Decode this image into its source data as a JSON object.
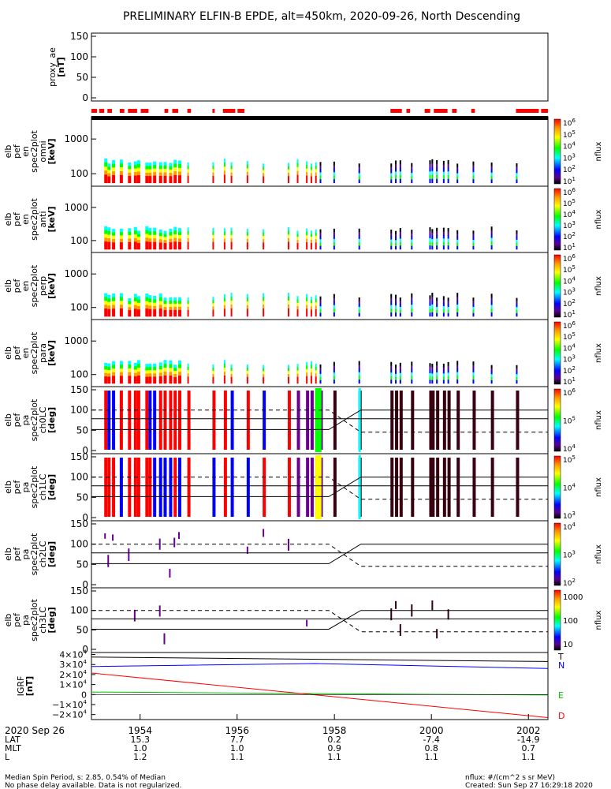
{
  "title": "PRELIMINARY ELFIN-B EPDE, alt=450km, 2020-09-26, North Descending",
  "footer": {
    "left_line1": "Median Spin Period, s: 2.85, 0.54% of Median",
    "left_line2": "No phase delay available. Data is not regularized.",
    "right_line1": "nflux: #/(cm^2 s sr MeV)",
    "right_line2": "Created: Sun Sep 27 16:29:18 2020"
  },
  "colors": {
    "red": "#ff0000",
    "blue": "#0000ff",
    "green": "#00c000",
    "purple": "#6a0090",
    "cyan": "#00e0ff",
    "yellow": "#ffff00"
  },
  "chart_data": {
    "type": "multi-panel",
    "time_axis": {
      "date_label": "2020 Sep 26",
      "tick_labels": [
        "1954",
        "1956",
        "1958",
        "2000",
        "2002"
      ],
      "tick_hours": [
        19.9,
        19.9333,
        19.9667,
        20.0,
        20.0333
      ],
      "range_hours": [
        19.8833,
        20.04
      ],
      "rows": [
        {
          "label": "LAT",
          "values": [
            "15.3",
            "7.7",
            "0.2",
            "-7.4",
            "-14.9"
          ]
        },
        {
          "label": "MLT",
          "values": [
            "1.0",
            "1.0",
            "0.9",
            "0.8",
            "0.7"
          ]
        },
        {
          "label": "L",
          "values": [
            "1.2",
            "1.1",
            "1.1",
            "1.1",
            "1.1"
          ]
        }
      ]
    },
    "panels": [
      {
        "id": "proxy_ae",
        "ylabel": [
          "proxy_ae",
          "[nT]"
        ],
        "type": "line",
        "ylim": [
          0,
          150
        ],
        "yticks": [
          "150",
          "100",
          "50",
          "0"
        ]
      },
      {
        "id": "omni",
        "ylabel": [
          "elb",
          "pef",
          "en",
          "spec2plot",
          "omni",
          "[keV]"
        ],
        "type": "spectrogram",
        "yscale": "log",
        "yticks": [
          "1000",
          "100"
        ],
        "zlabel": "nflux",
        "z_exponents": [
          "1",
          "2",
          "3",
          "4",
          "5",
          "6"
        ]
      },
      {
        "id": "anti",
        "ylabel": [
          "elb",
          "pef",
          "en",
          "spec2plot",
          "anti",
          "[keV]"
        ],
        "type": "spectrogram",
        "yscale": "log",
        "yticks": [
          "1000",
          "100"
        ],
        "zlabel": "nflux",
        "z_exponents": [
          "1",
          "2",
          "3",
          "4",
          "5",
          "6"
        ]
      },
      {
        "id": "perp",
        "ylabel": [
          "elb",
          "pef",
          "en",
          "spec2plot",
          "perp",
          "[keV]"
        ],
        "type": "spectrogram",
        "yscale": "log",
        "yticks": [
          "1000",
          "100"
        ],
        "zlabel": "nflux",
        "z_exponents": [
          "1",
          "2",
          "3",
          "4",
          "5",
          "6"
        ]
      },
      {
        "id": "para",
        "ylabel": [
          "elb",
          "pef",
          "en",
          "spec2plot",
          "para",
          "[keV]"
        ],
        "type": "spectrogram",
        "yscale": "log",
        "yticks": [
          "1000",
          "100"
        ],
        "zlabel": "nflux",
        "z_exponents": [
          "1",
          "2",
          "3",
          "4",
          "5",
          "6"
        ]
      },
      {
        "id": "ch0LC",
        "ylabel": [
          "elb",
          "pef",
          "pa",
          "spec2plot",
          "ch0LC",
          "[deg]"
        ],
        "type": "spectrogram",
        "yticks": [
          "150",
          "100",
          "50",
          "0"
        ],
        "zlabel": "nflux",
        "z_exponents": [
          "4",
          "5",
          "6"
        ]
      },
      {
        "id": "ch1LC",
        "ylabel": [
          "elb",
          "pef",
          "pa",
          "spec2plot",
          "ch1LC",
          "[deg]"
        ],
        "type": "spectrogram",
        "yticks": [
          "150",
          "100",
          "50",
          "0"
        ],
        "zlabel": "nflux",
        "z_exponents": [
          "3",
          "4",
          "5"
        ]
      },
      {
        "id": "ch2LC",
        "ylabel": [
          "elb",
          "pef",
          "pa",
          "spec2plot",
          "ch2LC",
          "[deg]"
        ],
        "type": "spectrogram",
        "yticks": [
          "150",
          "100",
          "50",
          "0"
        ],
        "zlabel": "nflux",
        "z_exponents": [
          "2",
          "3",
          "4"
        ]
      },
      {
        "id": "ch3LC",
        "ylabel": [
          "elb",
          "pef",
          "pa",
          "spec2plot",
          "ch3LC",
          "[deg]"
        ],
        "type": "spectrogram",
        "yticks": [
          "150",
          "100",
          "50",
          "0"
        ],
        "zlabel": "nflux",
        "z_ticks": [
          "1000",
          "100",
          "10"
        ]
      },
      {
        "id": "IGRF",
        "ylabel": [
          "IGRF",
          "[nT]"
        ],
        "type": "line",
        "ylim": [
          -25000,
          42000
        ],
        "ytick_mantissas": [
          "4",
          "3",
          "2",
          "1",
          "0",
          "−1",
          "−2"
        ],
        "ytick_exponent": "4",
        "legend": [
          "T",
          "N",
          "E",
          "D"
        ],
        "series": [
          {
            "name": "T",
            "x": [
              19.8833,
              20.04
            ],
            "values": [
              37500,
              33000
            ]
          },
          {
            "name": "N",
            "x": [
              19.8833,
              19.96,
              20.04
            ],
            "values": [
              28000,
              31000,
              26000
            ]
          },
          {
            "name": "E",
            "x": [
              19.8833,
              20.04
            ],
            "values": [
              2500,
              -500
            ]
          },
          {
            "name": "D",
            "x": [
              19.8833,
              20.04
            ],
            "values": [
              21500,
              -23000
            ]
          }
        ]
      }
    ]
  }
}
